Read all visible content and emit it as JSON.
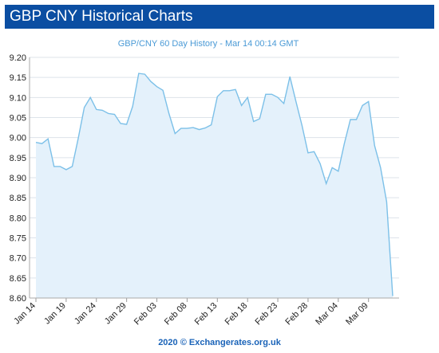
{
  "header": {
    "title": "GBP CNY Historical Charts"
  },
  "footer": {
    "credit": "2020 © Exchangerates.org.uk"
  },
  "colors": {
    "header_bg": "#0b4ea2",
    "line": "#7cc0e8",
    "fill": "#e4f1fb",
    "grid": "#dde3ea",
    "title": "#4a9ad6",
    "credit": "#1a63b8"
  },
  "chart_data": {
    "type": "area",
    "title": "GBP/CNY 60 Day History - Mar 14 00:14 GMT",
    "xlabel": "",
    "ylabel": "",
    "ylim": [
      8.6,
      9.2
    ],
    "yticks": [
      "9.20",
      "9.15",
      "9.10",
      "9.05",
      "9.00",
      "8.95",
      "8.90",
      "8.85",
      "8.80",
      "8.75",
      "8.70",
      "8.65",
      "8.60"
    ],
    "xticks": [
      "Jan 14",
      "Jan 19",
      "Jan 24",
      "Jan 29",
      "Feb 03",
      "Feb 08",
      "Feb 13",
      "Feb 18",
      "Feb 23",
      "Feb 28",
      "Mar 04",
      "Mar 09"
    ],
    "grid": true,
    "series": [
      {
        "dates": [
          "Jan 14",
          "Jan 15",
          "Jan 16",
          "Jan 17",
          "Jan 18",
          "Jan 19",
          "Jan 20",
          "Jan 21",
          "Jan 22",
          "Jan 23",
          "Jan 24",
          "Jan 25",
          "Jan 26",
          "Jan 27",
          "Jan 28",
          "Jan 29",
          "Jan 30",
          "Jan 31",
          "Feb 01",
          "Feb 02",
          "Feb 03",
          "Feb 04",
          "Feb 05",
          "Feb 06",
          "Feb 07",
          "Feb 08",
          "Feb 09",
          "Feb 10",
          "Feb 11",
          "Feb 12",
          "Feb 13",
          "Feb 14",
          "Feb 15",
          "Feb 16",
          "Feb 17",
          "Feb 18",
          "Feb 19",
          "Feb 20",
          "Feb 21",
          "Feb 22",
          "Feb 23",
          "Feb 24",
          "Feb 25",
          "Feb 26",
          "Feb 27",
          "Feb 28",
          "Feb 29",
          "Mar 01",
          "Mar 02",
          "Mar 03",
          "Mar 04",
          "Mar 05",
          "Mar 06",
          "Mar 07",
          "Mar 08",
          "Mar 09",
          "Mar 10",
          "Mar 11",
          "Mar 12",
          "Mar 13"
        ],
        "values": [
          8.988,
          8.985,
          8.997,
          8.928,
          8.928,
          8.92,
          8.928,
          8.998,
          9.075,
          9.1,
          9.07,
          9.068,
          9.06,
          9.058,
          9.035,
          9.033,
          9.078,
          9.16,
          9.158,
          9.14,
          9.127,
          9.118,
          9.06,
          9.01,
          9.023,
          9.023,
          9.025,
          9.02,
          9.024,
          9.032,
          9.102,
          9.117,
          9.117,
          9.12,
          9.08,
          9.1,
          9.04,
          9.047,
          9.108,
          9.108,
          9.1,
          9.085,
          9.152,
          9.09,
          9.03,
          8.962,
          8.965,
          8.935,
          8.885,
          8.925,
          8.916,
          8.985,
          9.045,
          9.045,
          9.08,
          9.09,
          8.98,
          8.925,
          8.84,
          8.605
        ]
      }
    ]
  }
}
